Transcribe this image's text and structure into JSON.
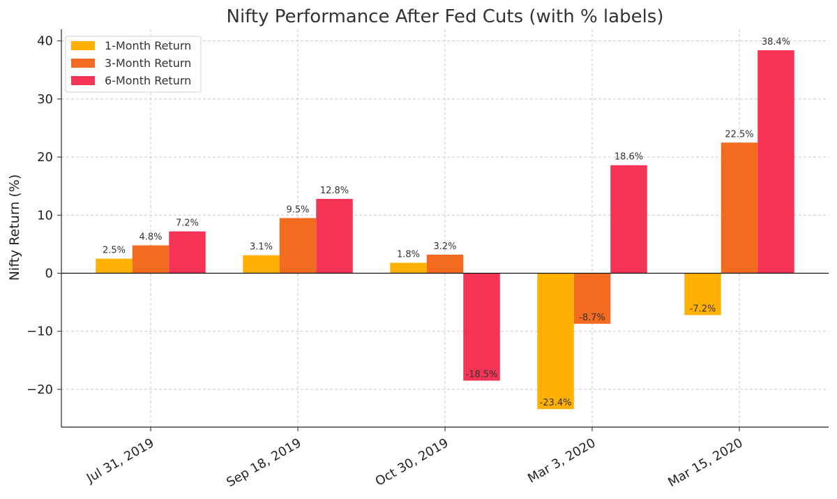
{
  "chart_data": {
    "type": "bar",
    "title": "Nifty Performance After Fed Cuts (with % labels)",
    "xlabel": "",
    "ylabel": "Nifty Return (%)",
    "ylim": [
      -26.5,
      42
    ],
    "yticks": [
      40,
      30,
      20,
      10,
      0,
      -10,
      -20
    ],
    "ytick_labels": [
      "40",
      "30",
      "20",
      "10",
      "0",
      "−10",
      "−20"
    ],
    "categories": [
      "Jul 31, 2019",
      "Sep 18, 2019",
      "Oct 30, 2019",
      "Mar 3, 2020",
      "Mar 15, 2020"
    ],
    "series": [
      {
        "name": "1-Month Return",
        "color": "#ffb000",
        "values": [
          2.5,
          3.1,
          1.8,
          -23.4,
          -7.2
        ],
        "labels": [
          "2.5%",
          "3.1%",
          "1.8%",
          "-23.4%",
          "-7.2%"
        ]
      },
      {
        "name": "3-Month Return",
        "color": "#f26b21",
        "values": [
          4.8,
          9.5,
          3.2,
          -8.7,
          22.5
        ],
        "labels": [
          "4.8%",
          "9.5%",
          "3.2%",
          "-8.7%",
          "22.5%"
        ]
      },
      {
        "name": "6-Month Return",
        "color": "#f53355",
        "values": [
          7.2,
          12.8,
          -18.5,
          18.6,
          38.4
        ],
        "labels": [
          "7.2%",
          "12.8%",
          "-18.5%",
          "18.6%",
          "38.4%"
        ]
      }
    ],
    "grid": true,
    "legend_position": "top-left"
  }
}
